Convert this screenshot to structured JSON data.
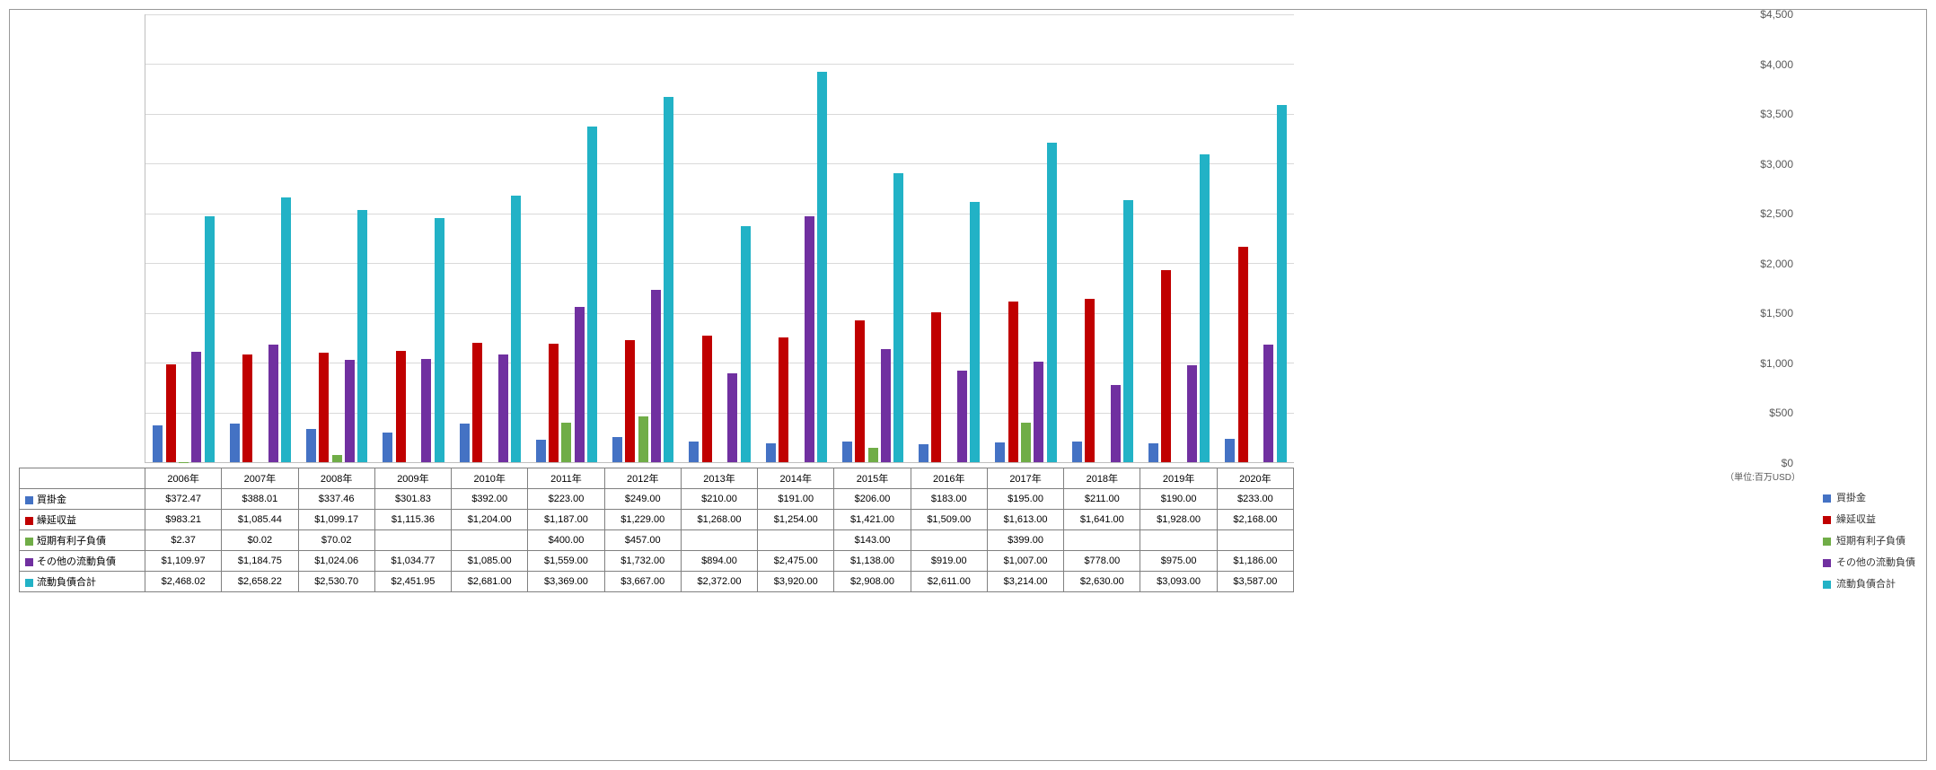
{
  "chart": {
    "type": "bar",
    "background_color": "#ffffff",
    "grid_color": "#d9d9d9",
    "border_color": "#999999",
    "axis_color": "#bfbfbf",
    "text_color": "#595959",
    "font_family": "Meiryo",
    "label_fontsize": 11,
    "tick_fontsize": 12,
    "y_unit_label": "（単位:百万USD）",
    "ylim": [
      0,
      4500
    ],
    "ytick_step": 500,
    "yticks": [
      "$0",
      "$500",
      "$1,000",
      "$1,500",
      "$2,000",
      "$2,500",
      "$3,000",
      "$3,500",
      "$4,000",
      "$4,500"
    ],
    "categories": [
      "2006年",
      "2007年",
      "2008年",
      "2009年",
      "2010年",
      "2011年",
      "2012年",
      "2013年",
      "2014年",
      "2015年",
      "2016年",
      "2017年",
      "2018年",
      "2019年",
      "2020年"
    ],
    "series": [
      {
        "name": "買掛金",
        "color": "#4472c4",
        "values": [
          372.47,
          388.01,
          337.46,
          301.83,
          392.0,
          223.0,
          249.0,
          210.0,
          191.0,
          206.0,
          183.0,
          195.0,
          211.0,
          190.0,
          233.0
        ],
        "display": [
          "$372.47",
          "$388.01",
          "$337.46",
          "$301.83",
          "$392.00",
          "$223.00",
          "$249.00",
          "$210.00",
          "$191.00",
          "$206.00",
          "$183.00",
          "$195.00",
          "$211.00",
          "$190.00",
          "$233.00"
        ]
      },
      {
        "name": "繰延収益",
        "color": "#c00000",
        "values": [
          983.21,
          1085.44,
          1099.17,
          1115.36,
          1204.0,
          1187.0,
          1229.0,
          1268.0,
          1254.0,
          1421.0,
          1509.0,
          1613.0,
          1641.0,
          1928.0,
          2168.0
        ],
        "display": [
          "$983.21",
          "$1,085.44",
          "$1,099.17",
          "$1,115.36",
          "$1,204.00",
          "$1,187.00",
          "$1,229.00",
          "$1,268.00",
          "$1,254.00",
          "$1,421.00",
          "$1,509.00",
          "$1,613.00",
          "$1,641.00",
          "$1,928.00",
          "$2,168.00"
        ]
      },
      {
        "name": "短期有利子負債",
        "color": "#70ad47",
        "values": [
          2.37,
          0.02,
          70.02,
          null,
          null,
          400.0,
          457.0,
          null,
          null,
          143.0,
          null,
          399.0,
          null,
          null,
          null
        ],
        "display": [
          "$2.37",
          "$0.02",
          "$70.02",
          "",
          "",
          "$400.00",
          "$457.00",
          "",
          "",
          "$143.00",
          "",
          "$399.00",
          "",
          "",
          ""
        ]
      },
      {
        "name": "その他の流動負債",
        "color": "#7030a0",
        "values": [
          1109.97,
          1184.75,
          1024.06,
          1034.77,
          1085.0,
          1559.0,
          1732.0,
          894.0,
          2475.0,
          1138.0,
          919.0,
          1007.0,
          778.0,
          975.0,
          1186.0
        ],
        "display": [
          "$1,109.97",
          "$1,184.75",
          "$1,024.06",
          "$1,034.77",
          "$1,085.00",
          "$1,559.00",
          "$1,732.00",
          "$894.00",
          "$2,475.00",
          "$1,138.00",
          "$919.00",
          "$1,007.00",
          "$778.00",
          "$975.00",
          "$1,186.00"
        ]
      },
      {
        "name": "流動負債合計",
        "color": "#22b2c6",
        "values": [
          2468.02,
          2658.22,
          2530.7,
          2451.95,
          2681.0,
          3369.0,
          3667.0,
          2372.0,
          3920.0,
          2908.0,
          2611.0,
          3214.0,
          2630.0,
          3093.0,
          3587.0
        ],
        "display": [
          "$2,468.02",
          "$2,658.22",
          "$2,530.70",
          "$2,451.95",
          "$2,681.00",
          "$3,369.00",
          "$3,667.00",
          "$2,372.00",
          "$3,920.00",
          "$2,908.00",
          "$2,611.00",
          "$3,214.00",
          "$2,630.00",
          "$3,093.00",
          "$3,587.00"
        ]
      }
    ]
  }
}
